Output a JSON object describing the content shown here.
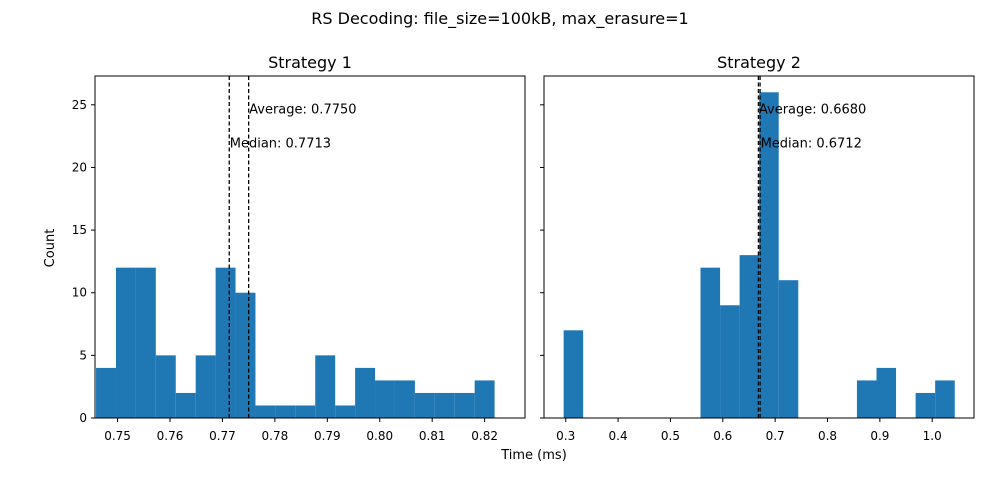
{
  "figure": {
    "suptitle": "RS Decoding: file_size=100kB, max_erasure=1",
    "xlabel": "Time (ms)",
    "ylabel": "Count"
  },
  "colors": {
    "bar": "#1f77b4",
    "axis": "#000000",
    "reference_line": "#000000"
  },
  "chart_data": [
    {
      "type": "bar",
      "title": "Strategy 1",
      "xlabel": "",
      "ylabel": "Count",
      "xlim": [
        0.7457,
        0.8277
      ],
      "ylim": [
        0,
        27.3
      ],
      "xticks": [
        0.75,
        0.76,
        0.77,
        0.78,
        0.79,
        0.8,
        0.81,
        0.82
      ],
      "xtick_labels": [
        "0.75",
        "0.76",
        "0.77",
        "0.78",
        "0.79",
        "0.80",
        "0.81",
        "0.82"
      ],
      "yticks": [
        0,
        5,
        10,
        15,
        20,
        25
      ],
      "ytick_labels": [
        "0",
        "5",
        "10",
        "15",
        "20",
        "25"
      ],
      "bins": [
        {
          "x0": 0.7459,
          "x1": 0.7497,
          "count": 4
        },
        {
          "x0": 0.7497,
          "x1": 0.7535,
          "count": 12
        },
        {
          "x0": 0.7535,
          "x1": 0.7573,
          "count": 12
        },
        {
          "x0": 0.7573,
          "x1": 0.7611,
          "count": 5
        },
        {
          "x0": 0.7611,
          "x1": 0.7649,
          "count": 2
        },
        {
          "x0": 0.7649,
          "x1": 0.7687,
          "count": 5
        },
        {
          "x0": 0.7687,
          "x1": 0.7725,
          "count": 12
        },
        {
          "x0": 0.7725,
          "x1": 0.7763,
          "count": 10
        },
        {
          "x0": 0.7763,
          "x1": 0.7801,
          "count": 1
        },
        {
          "x0": 0.7801,
          "x1": 0.7839,
          "count": 1
        },
        {
          "x0": 0.7839,
          "x1": 0.7877,
          "count": 1
        },
        {
          "x0": 0.7877,
          "x1": 0.7915,
          "count": 5
        },
        {
          "x0": 0.7915,
          "x1": 0.7953,
          "count": 1
        },
        {
          "x0": 0.7953,
          "x1": 0.7991,
          "count": 4
        },
        {
          "x0": 0.7991,
          "x1": 0.8029,
          "count": 3
        },
        {
          "x0": 0.8029,
          "x1": 0.8067,
          "count": 3
        },
        {
          "x0": 0.8067,
          "x1": 0.8105,
          "count": 2
        },
        {
          "x0": 0.8105,
          "x1": 0.8143,
          "count": 2
        },
        {
          "x0": 0.8143,
          "x1": 0.8181,
          "count": 2
        },
        {
          "x0": 0.8181,
          "x1": 0.8219,
          "count": 3
        }
      ],
      "reference_lines": [
        {
          "name": "median",
          "x": 0.7713,
          "label": "Median: 0.7713",
          "label_y": 22
        },
        {
          "name": "average",
          "x": 0.775,
          "label": "Average: 0.7750",
          "label_y": 24.7
        }
      ]
    },
    {
      "type": "bar",
      "title": "Strategy 2",
      "xlabel": "",
      "ylabel": "",
      "xlim": [
        0.2585,
        1.0798
      ],
      "ylim": [
        0,
        27.3
      ],
      "xticks": [
        0.3,
        0.4,
        0.5,
        0.6,
        0.7,
        0.8,
        0.9,
        1.0
      ],
      "xtick_labels": [
        "0.3",
        "0.4",
        "0.5",
        "0.6",
        "0.7",
        "0.8",
        "0.9",
        "1.0"
      ],
      "yticks": [
        0,
        5,
        10,
        15,
        20,
        25
      ],
      "ytick_labels": [
        "",
        "",
        "",
        "",
        "",
        ""
      ],
      "bins": [
        {
          "x0": 0.296,
          "x1": 0.3333,
          "count": 7
        },
        {
          "x0": 0.3333,
          "x1": 0.3707,
          "count": 0
        },
        {
          "x0": 0.3707,
          "x1": 0.408,
          "count": 0
        },
        {
          "x0": 0.408,
          "x1": 0.4454,
          "count": 0
        },
        {
          "x0": 0.4454,
          "x1": 0.4827,
          "count": 0
        },
        {
          "x0": 0.4827,
          "x1": 0.5201,
          "count": 0
        },
        {
          "x0": 0.5201,
          "x1": 0.5574,
          "count": 0
        },
        {
          "x0": 0.5574,
          "x1": 0.5948,
          "count": 12
        },
        {
          "x0": 0.5948,
          "x1": 0.6321,
          "count": 9
        },
        {
          "x0": 0.6321,
          "x1": 0.6695,
          "count": 13
        },
        {
          "x0": 0.6695,
          "x1": 0.7068,
          "count": 26
        },
        {
          "x0": 0.7068,
          "x1": 0.7442,
          "count": 11
        },
        {
          "x0": 0.7442,
          "x1": 0.7815,
          "count": 0
        },
        {
          "x0": 0.7815,
          "x1": 0.8189,
          "count": 0
        },
        {
          "x0": 0.8189,
          "x1": 0.8562,
          "count": 0
        },
        {
          "x0": 0.8562,
          "x1": 0.8936,
          "count": 3
        },
        {
          "x0": 0.8936,
          "x1": 0.9309,
          "count": 4
        },
        {
          "x0": 0.9309,
          "x1": 0.9683,
          "count": 0
        },
        {
          "x0": 0.9683,
          "x1": 1.0056,
          "count": 2
        },
        {
          "x0": 1.0056,
          "x1": 1.043,
          "count": 3
        }
      ],
      "reference_lines": [
        {
          "name": "median",
          "x": 0.6712,
          "label": "Median: 0.6712",
          "label_y": 22
        },
        {
          "name": "average",
          "x": 0.668,
          "label": "Average: 0.6680",
          "label_y": 24.7
        }
      ]
    }
  ]
}
